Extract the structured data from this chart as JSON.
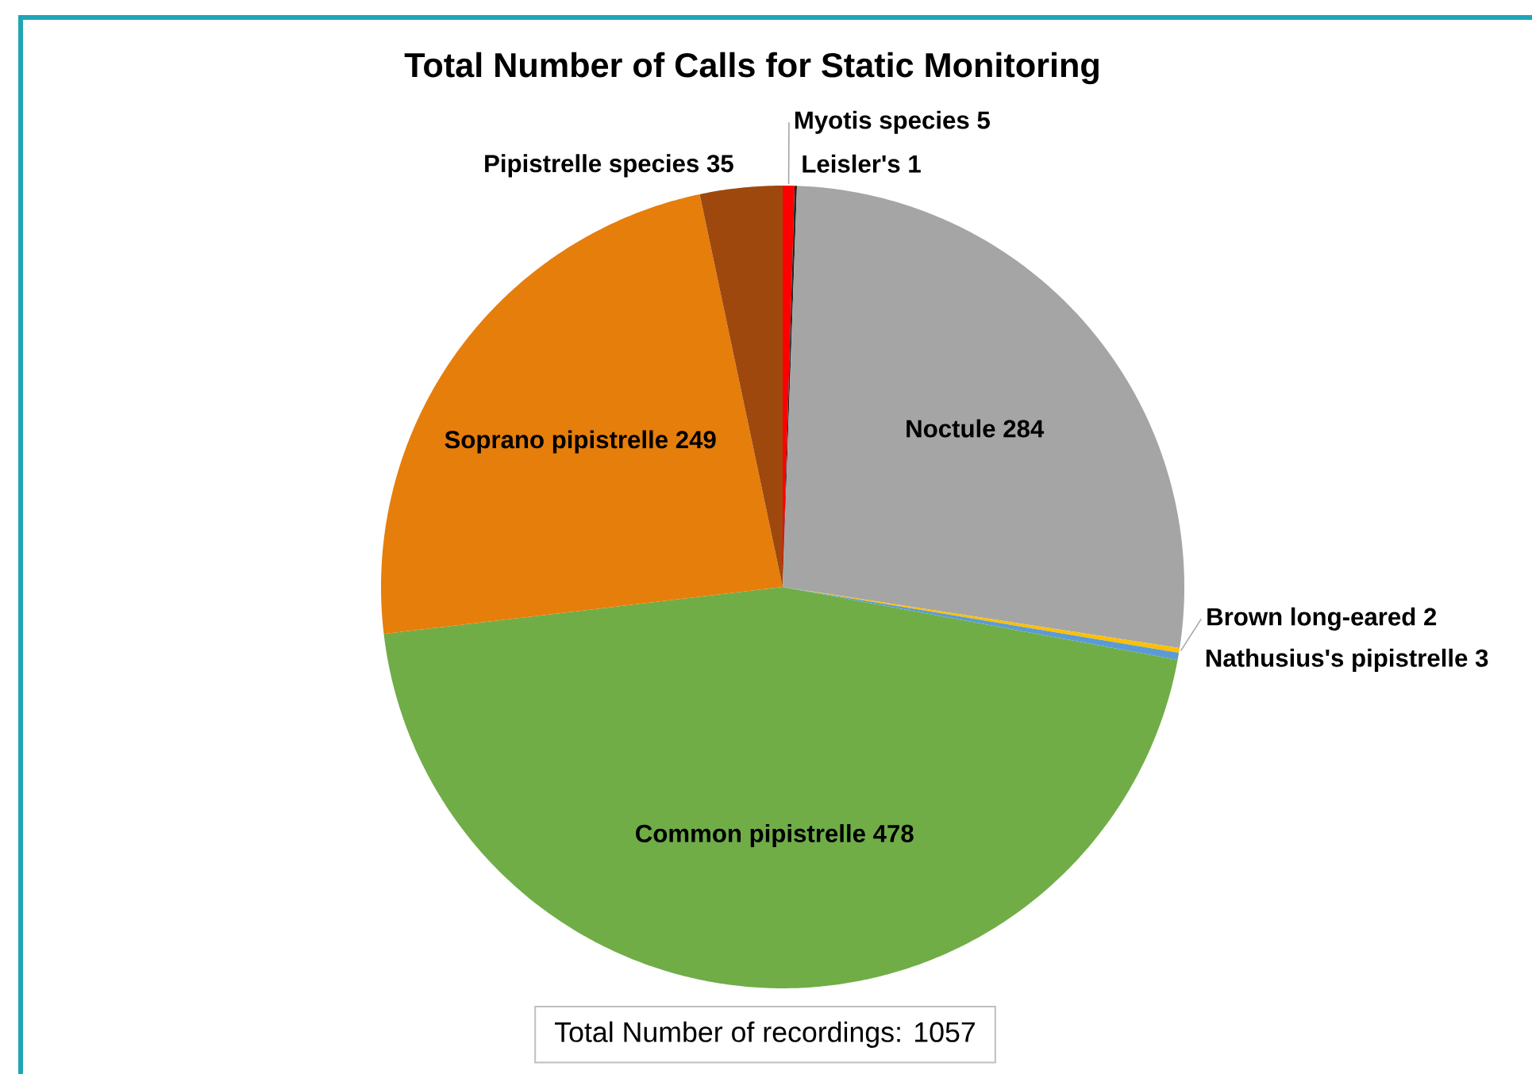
{
  "chart_data": {
    "type": "pie",
    "title": "Total Number of Calls for Static Monitoring",
    "categories": [
      "Myotis species",
      "Leisler's",
      "Noctule",
      "Brown long-eared",
      "Nathusius's pipistrelle",
      "Common pipistrelle",
      "Soprano pipistrelle",
      "Pipistrelle species"
    ],
    "values": [
      5,
      1,
      284,
      2,
      3,
      478,
      249,
      35
    ],
    "colors": [
      "#ff0000",
      "#262626",
      "#a5a5a5",
      "#ffc000",
      "#5b9bd5",
      "#70ad47",
      "#e67e0b",
      "#9e480e"
    ],
    "data_labels": true,
    "annotations": [
      "Total Number of recordings: 1057"
    ]
  }
}
